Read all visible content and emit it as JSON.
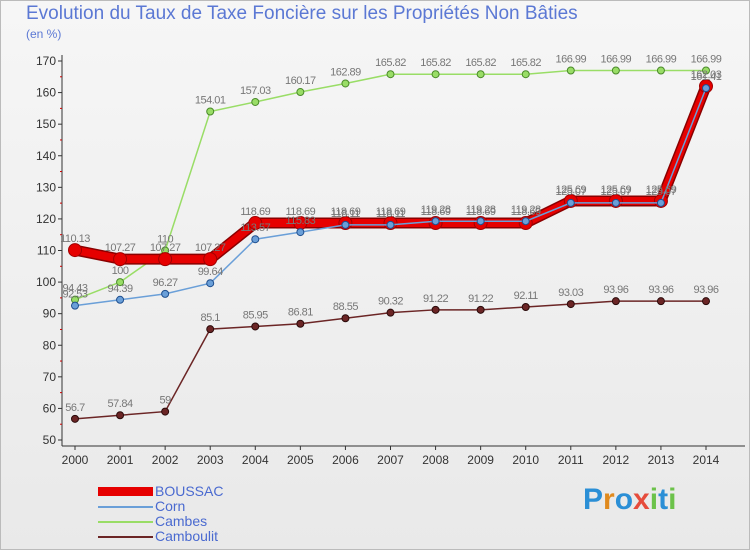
{
  "chart_data": {
    "type": "line",
    "title": "Evolution du Taux de Taxe Foncière sur les Propriétés Non Bâties",
    "ylabel": "(en %)",
    "xlabel": "",
    "ylim": [
      50,
      170
    ],
    "yticks": [
      "50",
      "60",
      "70",
      "80",
      "90",
      "100",
      "110",
      "120",
      "130",
      "140",
      "150",
      "160",
      "170"
    ],
    "categories": [
      "2000",
      "2001",
      "2002",
      "2003",
      "2004",
      "2005",
      "2006",
      "2007",
      "2008",
      "2009",
      "2010",
      "2011",
      "2012",
      "2013",
      "2014"
    ],
    "series": [
      {
        "name": "BOUSSAC",
        "color": "#e60000",
        "values": [
          110.13,
          107.27,
          107.27,
          107.27,
          118.69,
          118.69,
          118.69,
          118.69,
          118.69,
          118.69,
          118.69,
          125.69,
          125.69,
          125.69,
          162.03
        ],
        "labels": [
          "110.13",
          "107.27",
          "107.27",
          "107.27",
          "118.69",
          "118.69",
          "118.69",
          "118.69",
          "118.69",
          "118.69",
          "118.69",
          "125.69",
          "125.69",
          "125.69",
          "162.03"
        ]
      },
      {
        "name": "Corn",
        "color": "#6a9fd8",
        "values": [
          92.53,
          94.39,
          96.27,
          99.64,
          113.57,
          115.83,
          118.11,
          118.11,
          119.28,
          119.28,
          119.28,
          125.07,
          125.07,
          125.07,
          161.41
        ],
        "labels": [
          "92.53",
          "94.39",
          "96.27",
          "99.64",
          "113.57",
          "115.83",
          "118.11",
          "118.11",
          "119.28",
          "119.28",
          "119.28",
          "125.07",
          "125.07",
          "125.07",
          "161.41"
        ]
      },
      {
        "name": "Cambes",
        "color": "#99dd66",
        "values": [
          94.43,
          100,
          110,
          154.01,
          157.03,
          160.17,
          162.89,
          165.82,
          165.82,
          165.82,
          165.82,
          166.99,
          166.99,
          166.99,
          166.99
        ],
        "labels": [
          "94.43",
          "100",
          "110",
          "154.01",
          "157.03",
          "160.17",
          "162.89",
          "165.82",
          "165.82",
          "165.82",
          "165.82",
          "166.99",
          "166.99",
          "166.99",
          "166.99"
        ]
      },
      {
        "name": "Camboulit",
        "color": "#6b2525",
        "values": [
          56.7,
          57.84,
          59,
          85.1,
          85.95,
          86.81,
          88.55,
          90.32,
          91.22,
          91.22,
          92.11,
          93.03,
          93.96,
          93.96,
          93.96
        ],
        "labels": [
          "56.7",
          "57.84",
          "59",
          "85.1",
          "85.95",
          "86.81",
          "88.55",
          "90.32",
          "91.22",
          "91.22",
          "92.11",
          "93.03",
          "93.96",
          "93.96",
          "93.96"
        ]
      }
    ],
    "legend_position": "bottom-left",
    "grid": false
  },
  "brand": {
    "letters": [
      "P",
      "r",
      "o",
      "x",
      "i",
      "t",
      "i"
    ],
    "colors": [
      "#2b8fd6",
      "#e08a1e",
      "#2b8fd6",
      "#e64c3c",
      "#6cc24a",
      "#2b8fd6",
      "#6cc24a"
    ]
  }
}
